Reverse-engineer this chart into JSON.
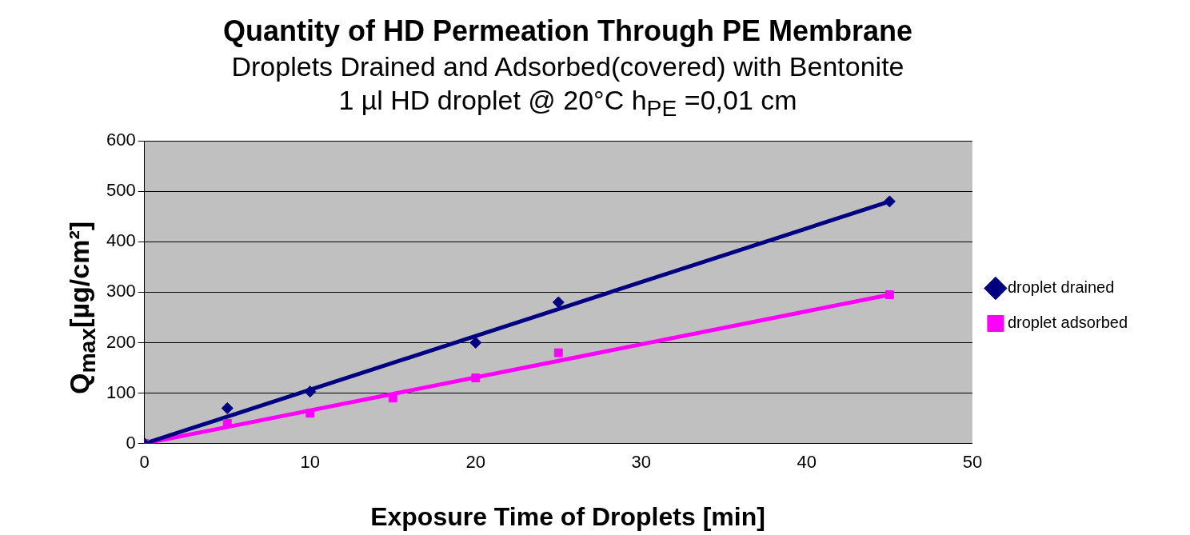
{
  "chart_data": {
    "type": "scatter",
    "title": "Quantity of HD Permeation Through PE Membrane",
    "subtitle": "Droplets Drained and Adsorbed(covered) with Bentonite\n1 µl HD droplet @ 20°C h$_{PE}$ =0,01 cm",
    "xlabel": "Exposure Time of Droplets [min]",
    "ylabel": "Q$_{max}$[µg/cm²]",
    "series": [
      {
        "name": "droplet drained",
        "color": "#000080",
        "marker": "diamond",
        "x": [
          0,
          5,
          10,
          20,
          25,
          45
        ],
        "values": [
          0,
          70,
          103,
          200,
          280,
          480
        ]
      },
      {
        "name": "droplet adsorbed",
        "color": "#ff00ff",
        "marker": "square",
        "x": [
          0,
          5,
          10,
          15,
          20,
          25,
          45
        ],
        "values": [
          0,
          40,
          60,
          90,
          130,
          180,
          295
        ]
      },
      {
        "type": "line",
        "color": "#000080",
        "marker": "none",
        "x": [
          0,
          45
        ],
        "values": [
          0,
          480
        ]
      },
      {
        "type": "line",
        "color": "#ff00ff",
        "marker": "none",
        "x": [
          0,
          45
        ],
        "values": [
          0,
          295
        ]
      }
    ],
    "xlim": [
      0,
      50
    ],
    "xticks": [
      0,
      10,
      20,
      30,
      40,
      50
    ],
    "ylim": [
      0,
      600
    ],
    "yticks": [
      0,
      100,
      200,
      300,
      400,
      500,
      600
    ],
    "grid": "y",
    "legend": "right",
    "line_style": "solid"
  }
}
